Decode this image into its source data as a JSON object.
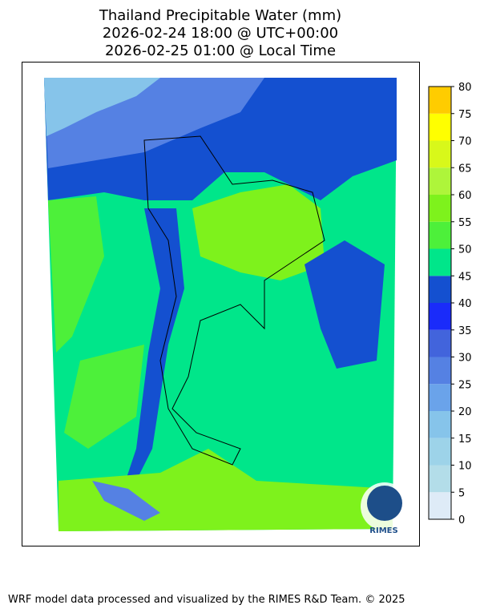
{
  "title": [
    "Thailand Precipitable Water (mm)",
    "2026-02-24 18:00 @ UTC+00:00",
    "2026-02-25 01:00 @ Local Time"
  ],
  "colorbar": {
    "ticks": [
      0,
      5,
      10,
      15,
      20,
      25,
      30,
      35,
      40,
      45,
      50,
      55,
      60,
      65,
      70,
      75,
      80
    ],
    "colors": [
      "#deebf7",
      "#b3dde9",
      "#9dd3e9",
      "#86c4ea",
      "#6aa3ea",
      "#5581e3",
      "#4264dc",
      "#1a2bfa",
      "#1450d0",
      "#00e68a",
      "#4df03a",
      "#7ef21c",
      "#aef53a",
      "#d8f81a",
      "#ffff00",
      "#ffcc00"
    ]
  },
  "logo": "RIMES",
  "footer": "WRF model data processed and visualized by the RIMES R&D Team. © 2025"
}
